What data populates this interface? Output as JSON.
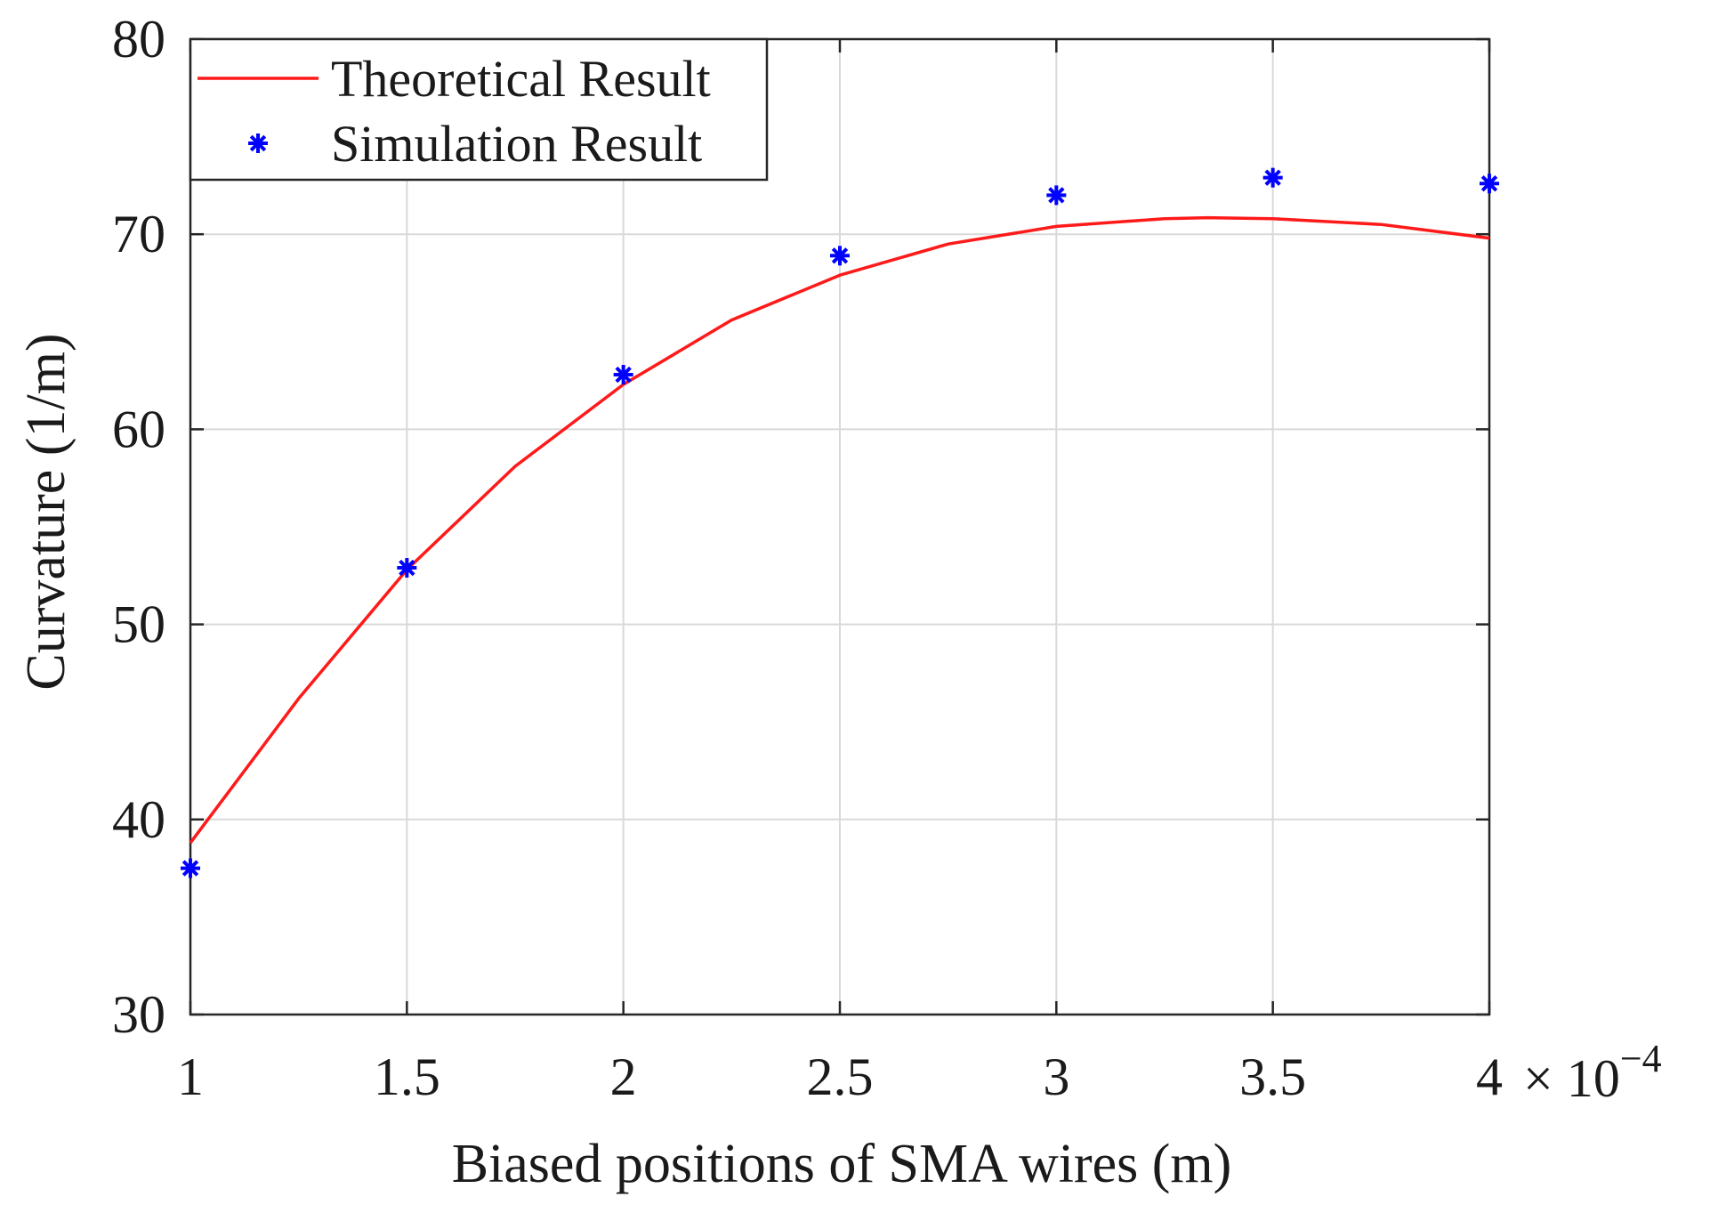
{
  "chart_data": {
    "type": "line",
    "title": "",
    "xlabel": "Biased positions of SMA wires (m)",
    "ylabel": "Curvature (1/m)",
    "x_exponent_label": {
      "base": "× 10",
      "power": "−4"
    },
    "xlim": [
      1,
      4
    ],
    "ylim": [
      30,
      80
    ],
    "x_ticks": [
      1,
      1.5,
      2,
      2.5,
      3,
      3.5,
      4
    ],
    "x_tick_labels": [
      "1",
      "1.5",
      "2",
      "2.5",
      "3",
      "3.5",
      "4"
    ],
    "y_ticks": [
      30,
      40,
      50,
      60,
      70,
      80
    ],
    "y_tick_labels": [
      "30",
      "40",
      "50",
      "60",
      "70",
      "80"
    ],
    "grid": true,
    "legend_position": "top-left",
    "series": [
      {
        "name": "Theoretical Result",
        "style": "line",
        "color": "#ff1a1a",
        "x": [
          1.0,
          1.25,
          1.5,
          1.75,
          2.0,
          2.25,
          2.5,
          2.75,
          3.0,
          3.25,
          3.35,
          3.5,
          3.75,
          4.0
        ],
        "y": [
          38.8,
          46.2,
          52.8,
          58.1,
          62.3,
          65.6,
          67.9,
          69.5,
          70.4,
          70.8,
          70.85,
          70.8,
          70.5,
          69.8
        ]
      },
      {
        "name": "Simulation Result",
        "style": "marker",
        "marker": "asterisk",
        "color": "#0000ff",
        "x": [
          1.0,
          1.5,
          2.0,
          2.5,
          3.0,
          3.5,
          4.0
        ],
        "y": [
          37.5,
          52.9,
          62.8,
          68.9,
          72.0,
          72.9,
          72.6
        ]
      }
    ]
  }
}
